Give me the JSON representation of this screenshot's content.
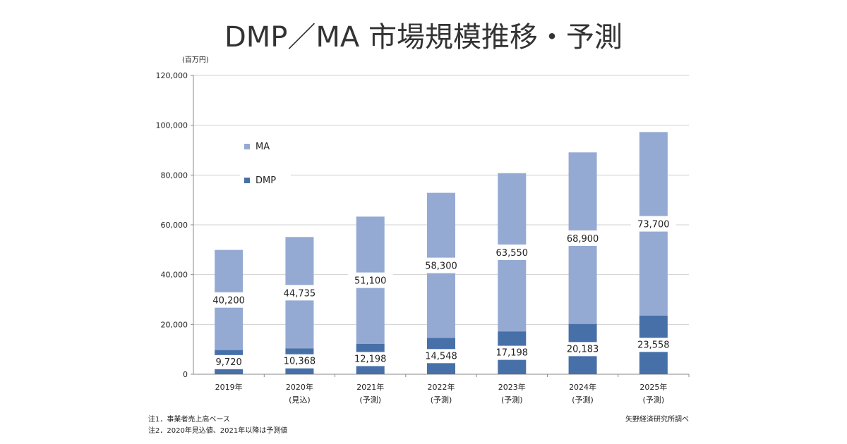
{
  "title": "DMP／MA 市場規模推移・予測",
  "notes": [
    "注1．事業者売上高ベース",
    "注2．2020年見込値、2021年以降は予測値"
  ],
  "source": "矢野経済研究所調べ",
  "colors": {
    "ma": "#94aad3",
    "dmp": "#4770a8",
    "grid": "#d0d0d0",
    "axis": "#888888",
    "text": "#222222"
  },
  "chart_data": {
    "type": "bar",
    "stacked": true,
    "unit_label": "(百万円)",
    "categories": [
      {
        "year": "2019年",
        "sub": ""
      },
      {
        "year": "2020年",
        "sub": "(見込)"
      },
      {
        "year": "2021年",
        "sub": "(予測)"
      },
      {
        "year": "2022年",
        "sub": "(予測)"
      },
      {
        "year": "2023年",
        "sub": "(予測)"
      },
      {
        "year": "2024年",
        "sub": "(予測)"
      },
      {
        "year": "2025年",
        "sub": "(予測)"
      }
    ],
    "series": [
      {
        "name": "DMP",
        "color": "#4770a8",
        "values": [
          9720,
          10368,
          12198,
          14548,
          17198,
          20183,
          23558
        ],
        "labels": [
          "9,720",
          "10,368",
          "12,198",
          "14,548",
          "17,198",
          "20,183",
          "23,558"
        ]
      },
      {
        "name": "MA",
        "color": "#94aad3",
        "values": [
          40200,
          44735,
          51100,
          58300,
          63550,
          68900,
          73700
        ],
        "labels": [
          "40,200",
          "44,735",
          "51,100",
          "58,300",
          "63,550",
          "68,900",
          "73,700"
        ]
      }
    ],
    "ylim": [
      0,
      120000
    ],
    "yticks": [
      0,
      20000,
      40000,
      60000,
      80000,
      100000,
      120000
    ],
    "ytick_labels": [
      "0",
      "20,000",
      "40,000",
      "60,000",
      "80,000",
      "100,000",
      "120,000"
    ],
    "grid": true,
    "legend": {
      "placement": "top-left",
      "entries": [
        "MA",
        "DMP"
      ]
    }
  }
}
